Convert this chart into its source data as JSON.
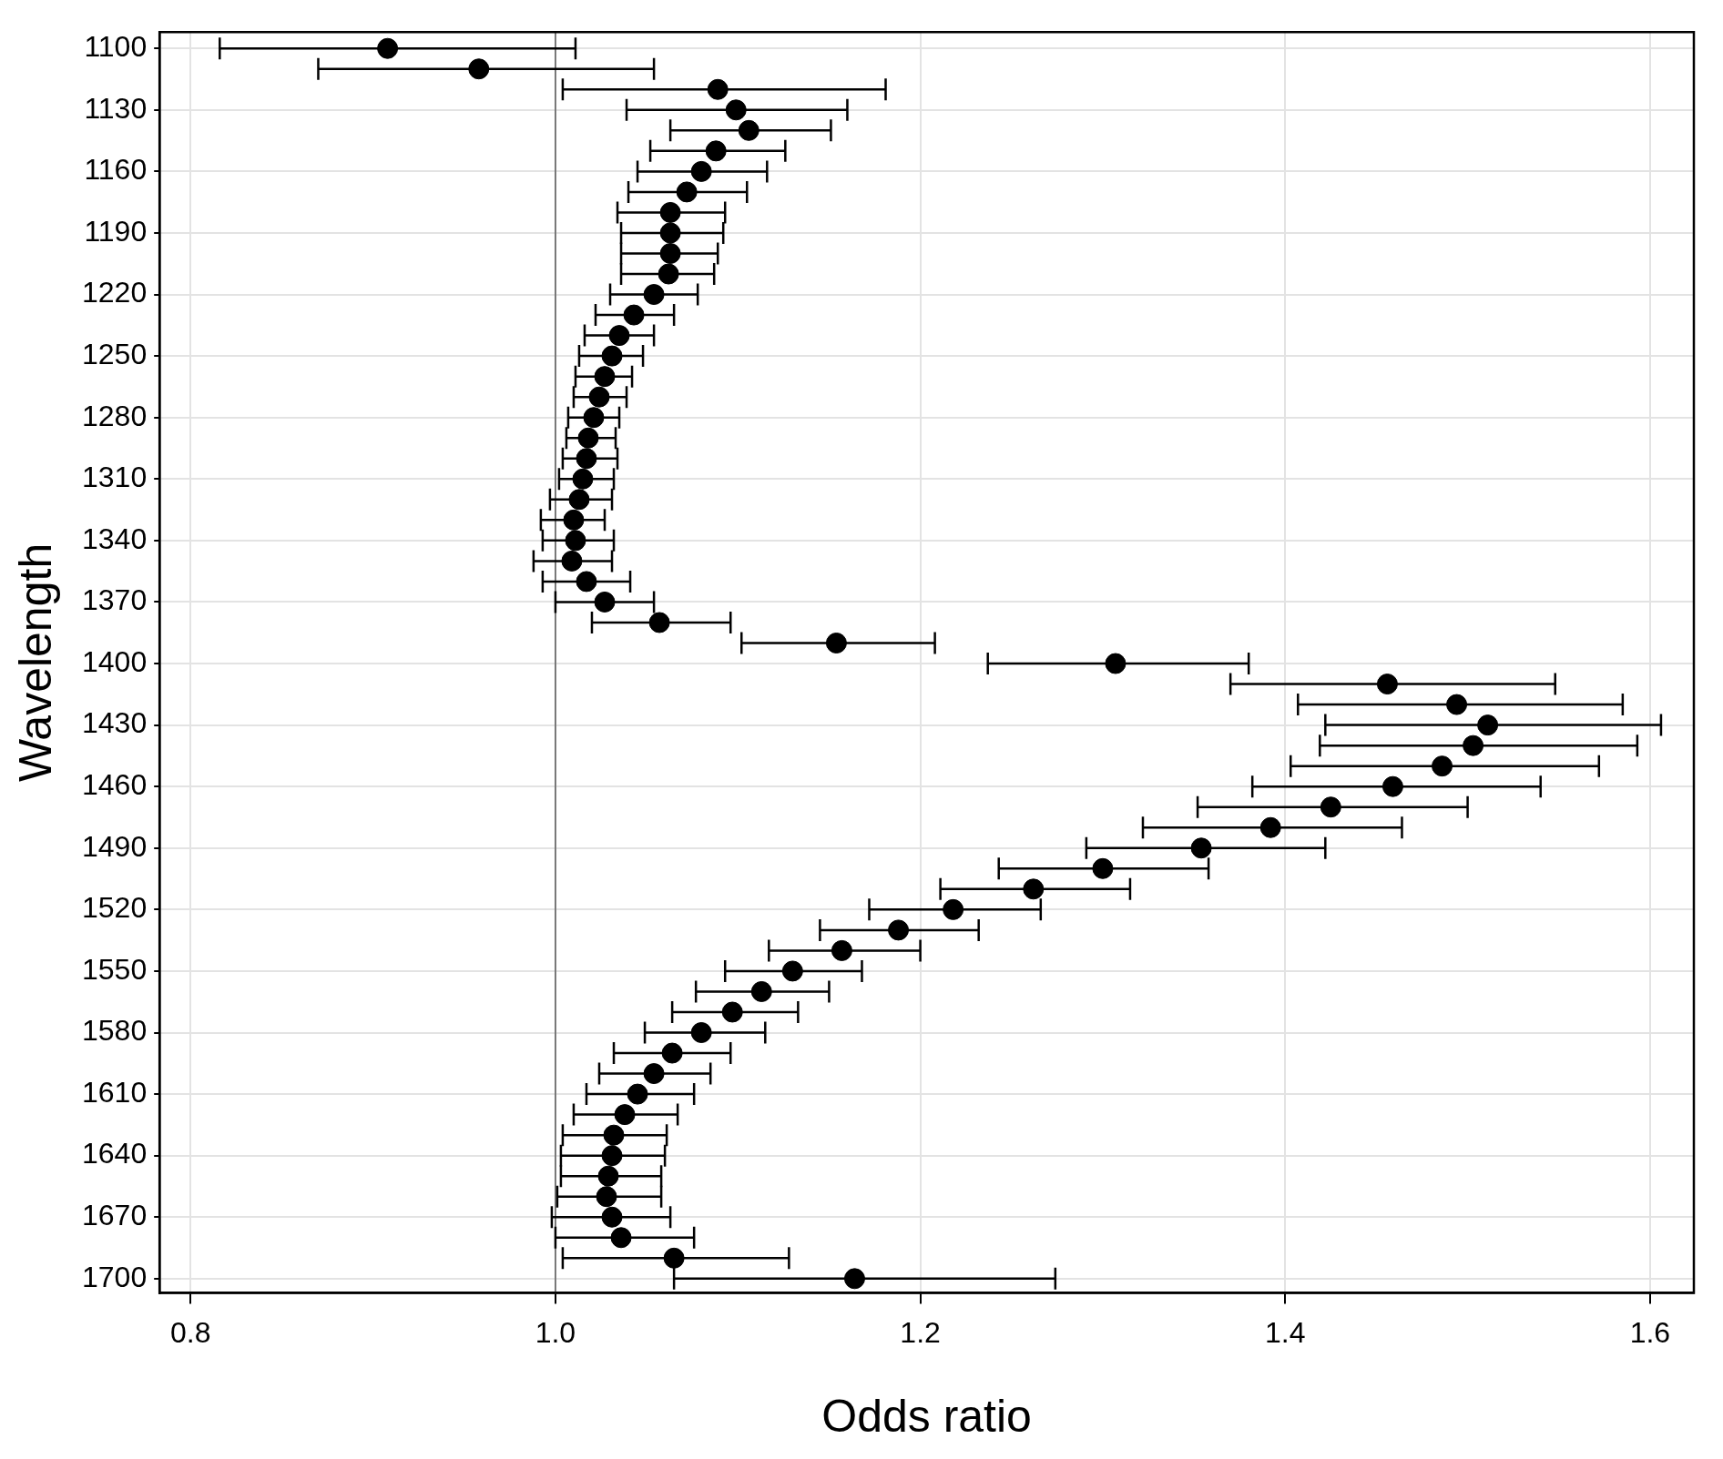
{
  "chart_data": {
    "type": "scatter",
    "xlabel": "Odds ratio",
    "ylabel": "Wavelength",
    "x": [
      0.908,
      0.958,
      1.089,
      1.099,
      1.106,
      1.088,
      1.08,
      1.072,
      1.063,
      1.063,
      1.063,
      1.062,
      1.054,
      1.043,
      1.035,
      1.031,
      1.027,
      1.024,
      1.021,
      1.018,
      1.017,
      1.015,
      1.013,
      1.01,
      1.011,
      1.009,
      1.017,
      1.027,
      1.057,
      1.154,
      1.307,
      1.456,
      1.494,
      1.511,
      1.503,
      1.486,
      1.459,
      1.425,
      1.392,
      1.354,
      1.3,
      1.262,
      1.218,
      1.188,
      1.157,
      1.13,
      1.113,
      1.097,
      1.08,
      1.064,
      1.054,
      1.045,
      1.038,
      1.032,
      1.031,
      1.029,
      1.028,
      1.031,
      1.036,
      1.065,
      1.164
    ],
    "values": [
      1100,
      1110,
      1120,
      1130,
      1140,
      1150,
      1160,
      1170,
      1180,
      1190,
      1200,
      1210,
      1220,
      1230,
      1240,
      1250,
      1260,
      1270,
      1280,
      1290,
      1300,
      1310,
      1320,
      1330,
      1340,
      1350,
      1360,
      1370,
      1380,
      1390,
      1400,
      1410,
      1420,
      1430,
      1440,
      1450,
      1460,
      1470,
      1480,
      1490,
      1500,
      1510,
      1520,
      1530,
      1540,
      1550,
      1560,
      1570,
      1580,
      1590,
      1600,
      1610,
      1620,
      1630,
      1640,
      1650,
      1660,
      1670,
      1680,
      1690,
      1700
    ],
    "xerrors": [
      [
        0.816,
        1.011
      ],
      [
        0.87,
        1.054
      ],
      [
        1.004,
        1.181
      ],
      [
        1.039,
        1.16
      ],
      [
        1.063,
        1.151
      ],
      [
        1.052,
        1.126
      ],
      [
        1.045,
        1.116
      ],
      [
        1.04,
        1.105
      ],
      [
        1.034,
        1.093
      ],
      [
        1.036,
        1.092
      ],
      [
        1.036,
        1.089
      ],
      [
        1.036,
        1.087
      ],
      [
        1.03,
        1.078
      ],
      [
        1.022,
        1.065
      ],
      [
        1.016,
        1.054
      ],
      [
        1.013,
        1.048
      ],
      [
        1.011,
        1.042
      ],
      [
        1.01,
        1.039
      ],
      [
        1.007,
        1.035
      ],
      [
        1.006,
        1.033
      ],
      [
        1.004,
        1.034
      ],
      [
        1.002,
        1.032
      ],
      [
        0.997,
        1.031
      ],
      [
        0.992,
        1.027
      ],
      [
        0.993,
        1.032
      ],
      [
        0.988,
        1.031
      ],
      [
        0.993,
        1.041
      ],
      [
        1.0,
        1.054
      ],
      [
        1.02,
        1.096
      ],
      [
        1.102,
        1.208
      ],
      [
        1.237,
        1.38
      ],
      [
        1.37,
        1.548
      ],
      [
        1.407,
        1.585
      ],
      [
        1.422,
        1.606
      ],
      [
        1.419,
        1.593
      ],
      [
        1.403,
        1.572
      ],
      [
        1.382,
        1.54
      ],
      [
        1.352,
        1.5
      ],
      [
        1.322,
        1.464
      ],
      [
        1.291,
        1.422
      ],
      [
        1.243,
        1.358
      ],
      [
        1.211,
        1.315
      ],
      [
        1.172,
        1.266
      ],
      [
        1.145,
        1.232
      ],
      [
        1.117,
        1.2
      ],
      [
        1.093,
        1.168
      ],
      [
        1.077,
        1.15
      ],
      [
        1.064,
        1.133
      ],
      [
        1.049,
        1.115
      ],
      [
        1.032,
        1.096
      ],
      [
        1.024,
        1.085
      ],
      [
        1.017,
        1.076
      ],
      [
        1.01,
        1.067
      ],
      [
        1.004,
        1.061
      ],
      [
        1.003,
        1.06
      ],
      [
        1.003,
        1.058
      ],
      [
        1.001,
        1.058
      ],
      [
        0.998,
        1.063
      ],
      [
        1.0,
        1.076
      ],
      [
        1.004,
        1.128
      ],
      [
        1.065,
        1.274
      ]
    ],
    "color": "#000000",
    "marker": "circle",
    "xlim": [
      0.783,
      1.624
    ],
    "xticks": [
      0.8,
      {
        "value": 1,
        "label": "1.0"
      },
      1.2,
      1.4,
      1.6
    ],
    "ylim": [
      1707,
      1092
    ],
    "yticks": [
      1100,
      1130,
      1160,
      1190,
      1220,
      1250,
      1280,
      1310,
      1340,
      1370,
      1400,
      1430,
      1460,
      1490,
      1520,
      1550,
      1580,
      1610,
      1640,
      1670,
      1700
    ],
    "ref_lines": [
      {
        "axis": "x",
        "value": 1,
        "color": "#555555"
      }
    ],
    "grid": true,
    "legend": false
  }
}
